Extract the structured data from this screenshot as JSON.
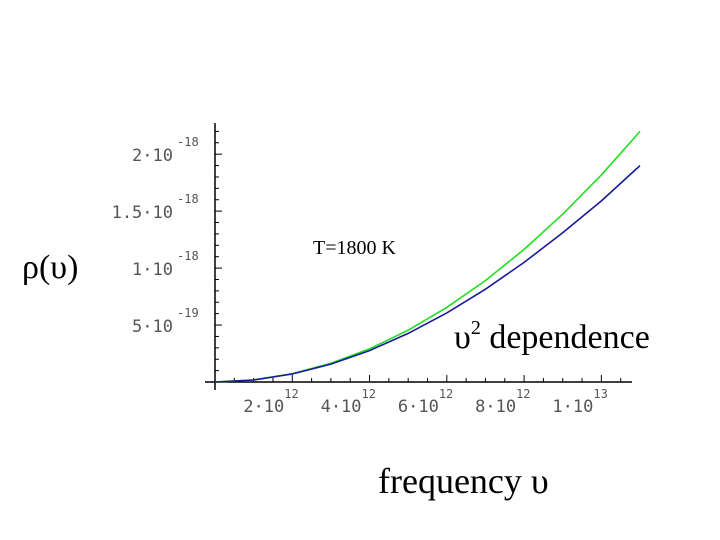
{
  "chart_data": {
    "type": "line",
    "ylabel": "ρ(υ)",
    "xlabel": "frequency  υ",
    "annotations": [
      {
        "id": "temp",
        "text": "T=1800 K"
      },
      {
        "id": "dep_base",
        "text": "υ",
        "sup": "2",
        "rest": " dependence"
      }
    ],
    "xlim": [
      0,
      11000000000000.0
    ],
    "ylim": [
      0,
      2.3e-18
    ],
    "x_ticks": [
      {
        "value": 2000000000000.0,
        "mant": "2·10",
        "exp": "12"
      },
      {
        "value": 4000000000000.0,
        "mant": "4·10",
        "exp": "12"
      },
      {
        "value": 6000000000000.0,
        "mant": "6·10",
        "exp": "12"
      },
      {
        "value": 8000000000000.0,
        "mant": "8·10",
        "exp": "12"
      },
      {
        "value": 10000000000000.0,
        "mant": "1·10",
        "exp": "13"
      }
    ],
    "y_ticks": [
      {
        "value": 5e-19,
        "mant": "5·10",
        "exp": "-19"
      },
      {
        "value": 1e-18,
        "mant": "1·10",
        "exp": "-18"
      },
      {
        "value": 1.5e-18,
        "mant": "1.5·10",
        "exp": "-18"
      },
      {
        "value": 2e-18,
        "mant": "2·10",
        "exp": "-18"
      }
    ],
    "series": [
      {
        "color": "#22dd22",
        "x": [
          0,
          1000000000000.0,
          2000000000000.0,
          3000000000000.0,
          4000000000000.0,
          5000000000000.0,
          6000000000000.0,
          7000000000000.0,
          8000000000000.0,
          9000000000000.0,
          10000000000000.0,
          11000000000000.0
        ],
        "y": [
          0,
          1.82e-20,
          7.27e-20,
          1.64e-19,
          2.91e-19,
          4.55e-19,
          6.55e-19,
          8.91e-19,
          1.164e-18,
          1.473e-18,
          1.818e-18,
          2.2e-18
        ]
      },
      {
        "color": "#1a1a9a",
        "x": [
          0,
          1000000000000.0,
          2000000000000.0,
          3000000000000.0,
          4000000000000.0,
          5000000000000.0,
          6000000000000.0,
          7000000000000.0,
          8000000000000.0,
          9000000000000.0,
          10000000000000.0,
          11000000000000.0
        ],
        "y": [
          0,
          1.78e-20,
          7.03e-20,
          1.57e-19,
          2.76e-19,
          4.27e-19,
          6.07e-19,
          8.15e-19,
          1.05e-18,
          1.31e-18,
          1.59e-18,
          1.9e-18
        ]
      }
    ]
  }
}
